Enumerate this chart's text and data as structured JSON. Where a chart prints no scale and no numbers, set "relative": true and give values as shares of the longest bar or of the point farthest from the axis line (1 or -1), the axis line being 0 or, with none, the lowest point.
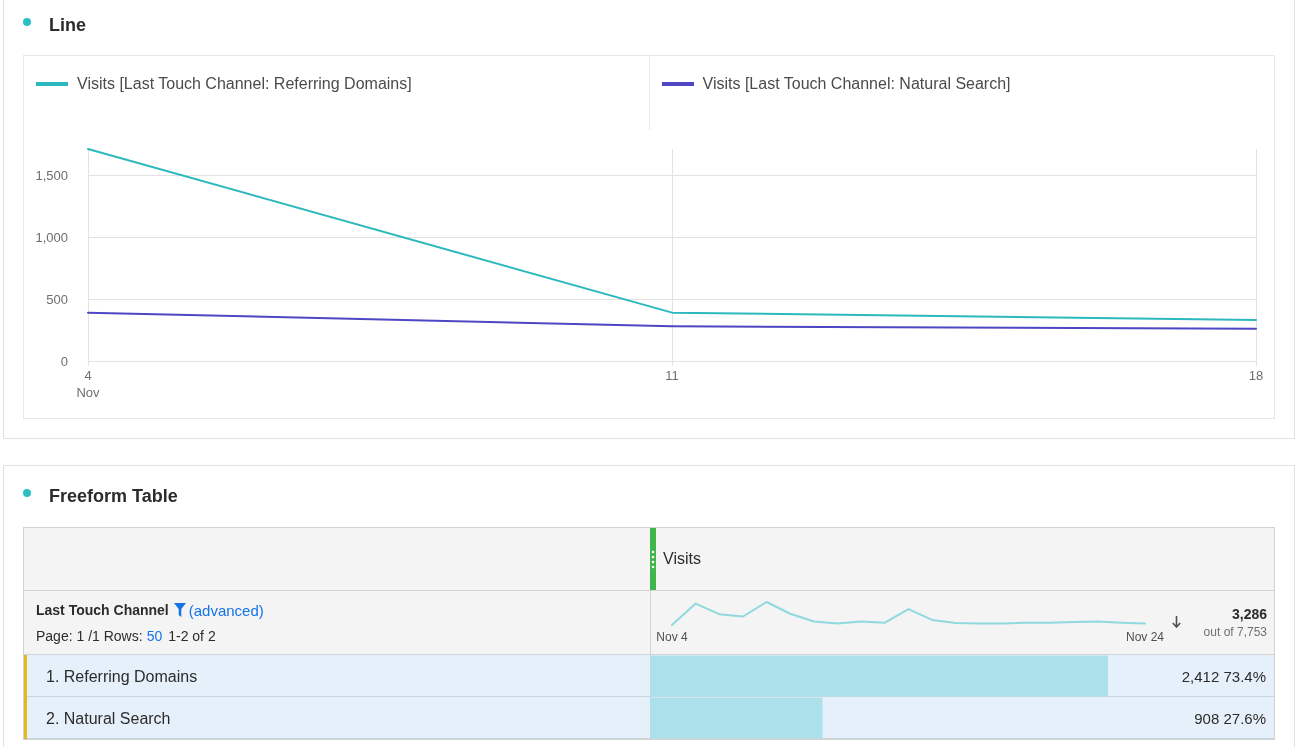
{
  "chart_data": [
    {
      "type": "line",
      "title": "Line",
      "x": [
        "--11-04",
        "--11-11",
        "--11-18"
      ],
      "series": [
        {
          "name": "Visits [Last Touch Channel: Referring Domains]",
          "color": "#2bb9bd",
          "values": [
            1710,
            390,
            330
          ]
        },
        {
          "name": "Visits [Last Touch Channel: Natural Search]",
          "color": "#4f46c4",
          "values": [
            390,
            280,
            260
          ]
        }
      ],
      "xlim": [
        "--11-04",
        "--11-18"
      ],
      "xticks": [
        {
          "value": "--11-04",
          "label": "4\nNov"
        },
        {
          "value": "--11-11",
          "label": "11"
        },
        {
          "value": "--11-18",
          "label": "18"
        }
      ],
      "ylim": [
        0,
        1710
      ],
      "yticks": [
        0,
        500,
        {
          "value": 1000,
          "label": "1,000"
        },
        {
          "value": 1500,
          "label": "1,500"
        }
      ],
      "grid": true,
      "legend": "top",
      "marker": "none"
    },
    {
      "type": "bar",
      "orientation": "horizontal",
      "xlabel": "Visits",
      "ylabel": "Last Touch Channel",
      "categories": [
        "1. Referring Domains",
        "2. Natural Search"
      ],
      "values": [
        2412,
        908
      ],
      "color": "#ace0ea",
      "xlim": [
        0,
        3286
      ],
      "value_labels": [
        "2,412 73.4%",
        "908 27.6%"
      ],
      "tick_labels": "y",
      "annotations": [
        "Freeform Table",
        "(advanced)",
        "Page: 1 /1 Rows:",
        "50",
        "1-2 of 2",
        "3,286",
        "out of 7,753"
      ]
    },
    {
      "type": "line",
      "relative": true,
      "color": "#90d9de",
      "marker": "none",
      "x": [
        "--11-04",
        "--11-05",
        "--11-06",
        "--11-07",
        "--11-08",
        "--11-09",
        "--11-10",
        "--11-11",
        "--11-12",
        "--11-13",
        "--11-14",
        "--11-15",
        "--11-16",
        "--11-17",
        "--11-18",
        "--11-19",
        "--11-20",
        "--11-21",
        "--11-22",
        "--11-23",
        "--11-24"
      ],
      "values": [
        0,
        0.93,
        0.47,
        0.37,
        1,
        0.49,
        0.15,
        0.06,
        0.15,
        0.1,
        0.69,
        0.22,
        0.09,
        0.06,
        0.07,
        0.1,
        0.1,
        0.13,
        0.15,
        0.1,
        0.06
      ],
      "xlim": [
        "--11-04",
        "--11-24"
      ],
      "xticks": [
        {
          "value": "--11-04",
          "label": "Nov 4"
        },
        {
          "value": "--11-24",
          "label": "Nov 24"
        }
      ]
    }
  ]
}
